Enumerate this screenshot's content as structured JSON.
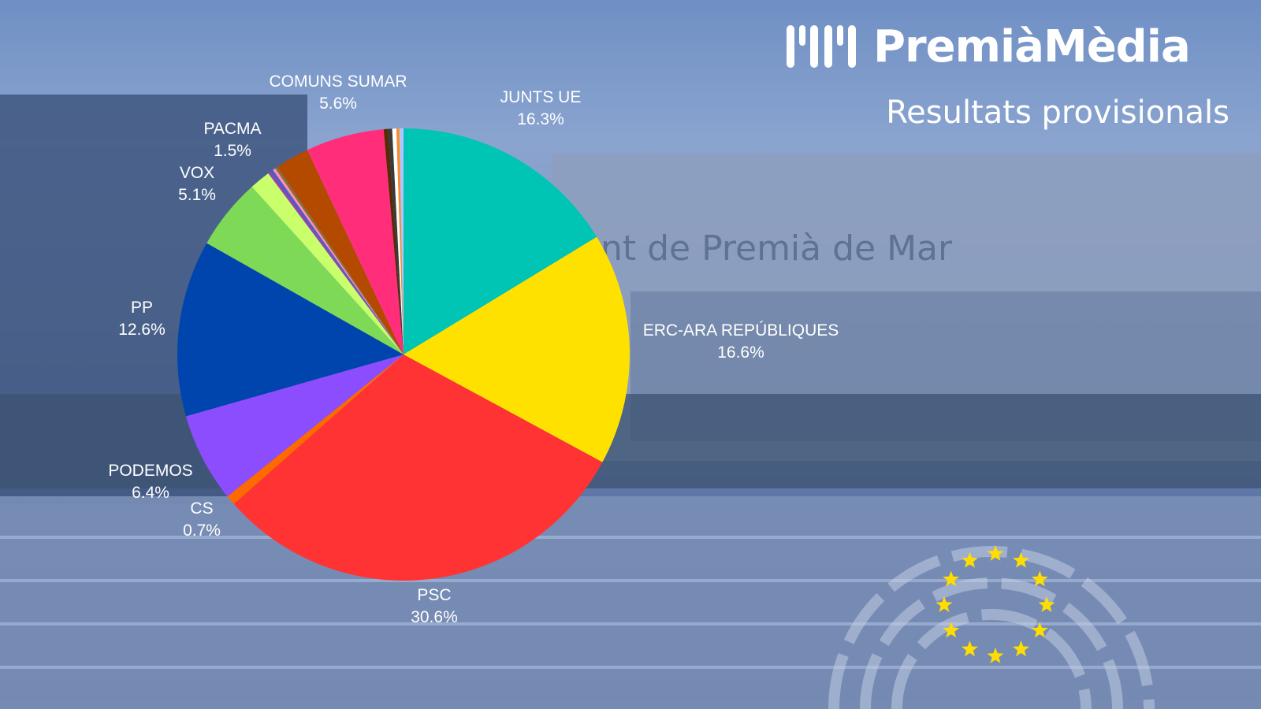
{
  "brand": {
    "name": "PremiàMèdia"
  },
  "header": {
    "subtitle": "Resultats provisionals"
  },
  "background": {
    "sign_text": "nt de Premià de Mar"
  },
  "chart_data": {
    "type": "pie",
    "title": "",
    "start_angle_deg": 0,
    "direction": "clockwise",
    "slices": [
      {
        "name": "JUNTS UE",
        "value": 16.3,
        "label": "16.3%",
        "color": "#00c4b4"
      },
      {
        "name": "ERC-ARA REPÚBLIQUES",
        "value": 16.6,
        "label": "16.6%",
        "color": "#ffe100"
      },
      {
        "name": "PSC",
        "value": 30.6,
        "label": "30.6%",
        "color": "#ff3333"
      },
      {
        "name": "CS",
        "value": 0.7,
        "label": "0.7%",
        "color": "#ff6a00"
      },
      {
        "name": "PODEMOS",
        "value": 6.4,
        "label": "6.4%",
        "color": "#8c4dff"
      },
      {
        "name": "PP",
        "value": 12.6,
        "label": "12.6%",
        "color": "#0045ad"
      },
      {
        "name": "VOX",
        "value": 5.1,
        "label": "5.1%",
        "color": "#7ed957"
      },
      {
        "name": "PACMA",
        "value": 1.5,
        "label": "1.5%",
        "color": "#c9ff6b"
      },
      {
        "name": "",
        "value": 0.2,
        "label": "",
        "color": "#9b3fb5"
      },
      {
        "name": "",
        "value": 0.2,
        "label": "",
        "color": "#4a5fc1"
      },
      {
        "name": "",
        "value": 0.2,
        "label": "",
        "color": "#ff8fb3"
      },
      {
        "name": "",
        "value": 0.2,
        "label": "",
        "color": "#8a6d3b"
      },
      {
        "name": "",
        "value": 2.4,
        "label": "",
        "color": "#b34a00"
      },
      {
        "name": "COMUNS SUMAR",
        "value": 5.6,
        "label": "5.6%",
        "color": "#ff2d7a"
      },
      {
        "name": "",
        "value": 0.3,
        "label": "",
        "color": "#5a2a00"
      },
      {
        "name": "",
        "value": 0.3,
        "label": "",
        "color": "#3a3a3a"
      },
      {
        "name": "",
        "value": 0.3,
        "label": "",
        "color": "#ffffff"
      },
      {
        "name": "",
        "value": 0.2,
        "label": "",
        "color": "#ff8c1a"
      },
      {
        "name": "",
        "value": 0.3,
        "label": "",
        "color": "#b0c4ff"
      }
    ]
  }
}
